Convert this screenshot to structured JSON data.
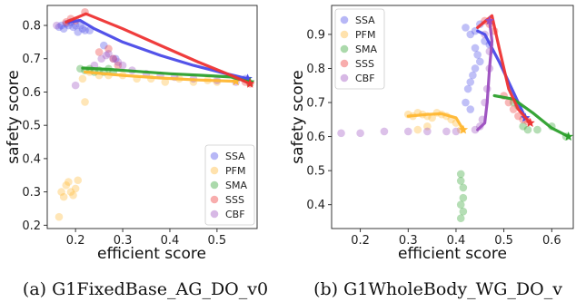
{
  "chart_data": [
    {
      "type": "scatter",
      "caption": "(a) G1FixedBase_AG_DO_v0",
      "xlabel": "efficient score",
      "ylabel": "safety score",
      "xlim": [
        0.14,
        0.585
      ],
      "ylim": [
        0.19,
        0.86
      ],
      "xticks": [
        "0.2",
        "0.3",
        "0.4",
        "0.5"
      ],
      "xtick_values": [
        0.2,
        0.3,
        0.4,
        0.5
      ],
      "yticks": [
        "0.2",
        "0.3",
        "0.4",
        "0.5",
        "0.6",
        "0.7",
        "0.8"
      ],
      "ytick_values": [
        0.2,
        0.3,
        0.4,
        0.5,
        0.6,
        0.7,
        0.8
      ],
      "legend_position": "bottom-right",
      "series": [
        {
          "name": "SSA",
          "color": "#4a4ae8",
          "points": [
            [
              0.165,
              0.795
            ],
            [
              0.17,
              0.8
            ],
            [
              0.175,
              0.79
            ],
            [
              0.18,
              0.805
            ],
            [
              0.185,
              0.8
            ],
            [
              0.19,
              0.81
            ],
            [
              0.195,
              0.795
            ],
            [
              0.2,
              0.8
            ],
            [
              0.205,
              0.78
            ],
            [
              0.21,
              0.8
            ],
            [
              0.215,
              0.79
            ],
            [
              0.22,
              0.785
            ],
            [
              0.23,
              0.785
            ],
            [
              0.26,
              0.74
            ],
            [
              0.285,
              0.7
            ],
            [
              0.56,
              0.64
            ]
          ],
          "line": [
            [
              0.185,
              0.81
            ],
            [
              0.21,
              0.815
            ],
            [
              0.24,
              0.79
            ],
            [
              0.3,
              0.75
            ],
            [
              0.38,
              0.71
            ],
            [
              0.45,
              0.68
            ],
            [
              0.52,
              0.655
            ],
            [
              0.565,
              0.64
            ]
          ]
        },
        {
          "name": "PFM",
          "color": "#ffb732",
          "points": [
            [
              0.165,
              0.225
            ],
            [
              0.17,
              0.3
            ],
            [
              0.175,
              0.285
            ],
            [
              0.18,
              0.32
            ],
            [
              0.185,
              0.33
            ],
            [
              0.19,
              0.3
            ],
            [
              0.195,
              0.29
            ],
            [
              0.2,
              0.31
            ],
            [
              0.205,
              0.335
            ],
            [
              0.215,
              0.64
            ],
            [
              0.22,
              0.57
            ],
            [
              0.23,
              0.66
            ],
            [
              0.25,
              0.65
            ],
            [
              0.27,
              0.65
            ],
            [
              0.3,
              0.65
            ],
            [
              0.33,
              0.64
            ],
            [
              0.36,
              0.64
            ],
            [
              0.39,
              0.63
            ],
            [
              0.42,
              0.64
            ],
            [
              0.45,
              0.63
            ],
            [
              0.48,
              0.635
            ],
            [
              0.5,
              0.63
            ]
          ],
          "line": [
            [
              0.22,
              0.66
            ],
            [
              0.3,
              0.65
            ],
            [
              0.38,
              0.642
            ],
            [
              0.46,
              0.636
            ],
            [
              0.54,
              0.632
            ]
          ]
        },
        {
          "name": "SMA",
          "color": "#2ca02c",
          "points": [
            [
              0.21,
              0.67
            ],
            [
              0.22,
              0.665
            ],
            [
              0.23,
              0.67
            ],
            [
              0.24,
              0.66
            ],
            [
              0.25,
              0.665
            ],
            [
              0.26,
              0.66
            ],
            [
              0.27,
              0.67
            ],
            [
              0.28,
              0.66
            ]
          ],
          "line": [
            [
              0.215,
              0.672
            ],
            [
              0.27,
              0.668
            ],
            [
              0.33,
              0.662
            ],
            [
              0.4,
              0.655
            ],
            [
              0.47,
              0.65
            ],
            [
              0.53,
              0.645
            ],
            [
              0.57,
              0.63
            ]
          ]
        },
        {
          "name": "SSS",
          "color": "#ee3333",
          "points": [
            [
              0.18,
              0.81
            ],
            [
              0.19,
              0.82
            ],
            [
              0.2,
              0.815
            ],
            [
              0.22,
              0.84
            ],
            [
              0.25,
              0.72
            ],
            [
              0.27,
              0.73
            ],
            [
              0.28,
              0.7
            ],
            [
              0.29,
              0.68
            ],
            [
              0.56,
              0.63
            ],
            [
              0.57,
              0.625
            ]
          ],
          "line": [
            [
              0.18,
              0.81
            ],
            [
              0.222,
              0.835
            ],
            [
              0.3,
              0.79
            ],
            [
              0.38,
              0.74
            ],
            [
              0.46,
              0.69
            ],
            [
              0.53,
              0.65
            ],
            [
              0.57,
              0.625
            ]
          ]
        },
        {
          "name": "CBF",
          "color": "#9b4dbf",
          "points": [
            [
              0.16,
              0.8
            ],
            [
              0.2,
              0.62
            ],
            [
              0.24,
              0.68
            ],
            [
              0.255,
              0.7
            ],
            [
              0.265,
              0.71
            ],
            [
              0.27,
              0.715
            ],
            [
              0.28,
              0.7
            ],
            [
              0.29,
              0.69
            ],
            [
              0.3,
              0.68
            ],
            [
              0.32,
              0.665
            ],
            [
              0.35,
              0.655
            ],
            [
              0.38,
              0.65
            ],
            [
              0.41,
              0.645
            ],
            [
              0.45,
              0.64
            ],
            [
              0.5,
              0.635
            ],
            [
              0.54,
              0.63
            ]
          ]
        }
      ]
    },
    {
      "type": "scatter",
      "caption": "(b) G1WholeBody_WG_DO_v",
      "xlabel": "efficient score",
      "ylabel": "safety score",
      "xlim": [
        0.14,
        0.645
      ],
      "ylim": [
        0.33,
        0.985
      ],
      "xticks": [
        "0.2",
        "0.3",
        "0.4",
        "0.5",
        "0.6"
      ],
      "xtick_values": [
        0.2,
        0.3,
        0.4,
        0.5,
        0.6
      ],
      "yticks": [
        "0.4",
        "0.5",
        "0.6",
        "0.7",
        "0.8",
        "0.9"
      ],
      "ytick_values": [
        0.4,
        0.5,
        0.6,
        0.7,
        0.8,
        0.9
      ],
      "legend_position": "top-left",
      "series": [
        {
          "name": "SSA",
          "color": "#4a4ae8",
          "points": [
            [
              0.42,
              0.92
            ],
            [
              0.43,
              0.9
            ],
            [
              0.44,
              0.91
            ],
            [
              0.45,
              0.93
            ],
            [
              0.44,
              0.86
            ],
            [
              0.445,
              0.84
            ],
            [
              0.45,
              0.82
            ],
            [
              0.44,
              0.8
            ],
            [
              0.435,
              0.78
            ],
            [
              0.43,
              0.76
            ],
            [
              0.425,
              0.74
            ],
            [
              0.42,
              0.7
            ],
            [
              0.43,
              0.68
            ],
            [
              0.46,
              0.88
            ],
            [
              0.47,
              0.87
            ]
          ],
          "line": [
            [
              0.445,
              0.91
            ],
            [
              0.46,
              0.9
            ],
            [
              0.49,
              0.82
            ],
            [
              0.52,
              0.73
            ],
            [
              0.545,
              0.655
            ]
          ]
        },
        {
          "name": "PFM",
          "color": "#ffb732",
          "points": [
            [
              0.3,
              0.665
            ],
            [
              0.31,
              0.66
            ],
            [
              0.32,
              0.67
            ],
            [
              0.33,
              0.665
            ],
            [
              0.34,
              0.66
            ],
            [
              0.35,
              0.655
            ],
            [
              0.36,
              0.67
            ],
            [
              0.37,
              0.665
            ],
            [
              0.38,
              0.66
            ],
            [
              0.39,
              0.65
            ],
            [
              0.4,
              0.64
            ],
            [
              0.41,
              0.62
            ],
            [
              0.32,
              0.62
            ],
            [
              0.34,
              0.63
            ]
          ],
          "line": [
            [
              0.3,
              0.66
            ],
            [
              0.34,
              0.665
            ],
            [
              0.37,
              0.667
            ],
            [
              0.4,
              0.655
            ],
            [
              0.415,
              0.62
            ]
          ]
        },
        {
          "name": "SMA",
          "color": "#2ca02c",
          "points": [
            [
              0.41,
              0.49
            ],
            [
              0.41,
              0.47
            ],
            [
              0.415,
              0.45
            ],
            [
              0.415,
              0.42
            ],
            [
              0.41,
              0.4
            ],
            [
              0.415,
              0.38
            ],
            [
              0.41,
              0.36
            ],
            [
              0.52,
              0.7
            ],
            [
              0.53,
              0.69
            ],
            [
              0.54,
              0.63
            ],
            [
              0.55,
              0.62
            ],
            [
              0.57,
              0.62
            ],
            [
              0.6,
              0.63
            ],
            [
              0.63,
              0.6
            ]
          ],
          "line": [
            [
              0.48,
              0.72
            ],
            [
              0.52,
              0.71
            ],
            [
              0.56,
              0.67
            ],
            [
              0.6,
              0.625
            ],
            [
              0.635,
              0.6
            ]
          ]
        },
        {
          "name": "SSS",
          "color": "#ee3333",
          "points": [
            [
              0.46,
              0.94
            ],
            [
              0.47,
              0.93
            ],
            [
              0.48,
              0.91
            ],
            [
              0.5,
              0.72
            ],
            [
              0.51,
              0.7
            ],
            [
              0.52,
              0.68
            ],
            [
              0.53,
              0.66
            ],
            [
              0.54,
              0.65
            ],
            [
              0.55,
              0.645
            ]
          ],
          "line": [
            [
              0.445,
              0.92
            ],
            [
              0.475,
              0.955
            ],
            [
              0.49,
              0.86
            ],
            [
              0.51,
              0.74
            ],
            [
              0.53,
              0.68
            ],
            [
              0.555,
              0.64
            ]
          ]
        },
        {
          "name": "CBF",
          "color": "#9b4dbf",
          "points": [
            [
              0.16,
              0.61
            ],
            [
              0.2,
              0.61
            ],
            [
              0.25,
              0.615
            ],
            [
              0.3,
              0.615
            ],
            [
              0.34,
              0.615
            ],
            [
              0.38,
              0.615
            ],
            [
              0.4,
              0.615
            ],
            [
              0.44,
              0.62
            ],
            [
              0.45,
              0.63
            ],
            [
              0.455,
              0.65
            ],
            [
              0.46,
              0.7
            ],
            [
              0.465,
              0.74
            ],
            [
              0.47,
              0.8
            ],
            [
              0.47,
              0.85
            ],
            [
              0.46,
              0.9
            ]
          ],
          "line": [
            [
              0.445,
              0.62
            ],
            [
              0.46,
              0.64
            ],
            [
              0.465,
              0.7
            ],
            [
              0.47,
              0.8
            ],
            [
              0.475,
              0.88
            ],
            [
              0.47,
              0.94
            ]
          ]
        }
      ]
    }
  ]
}
